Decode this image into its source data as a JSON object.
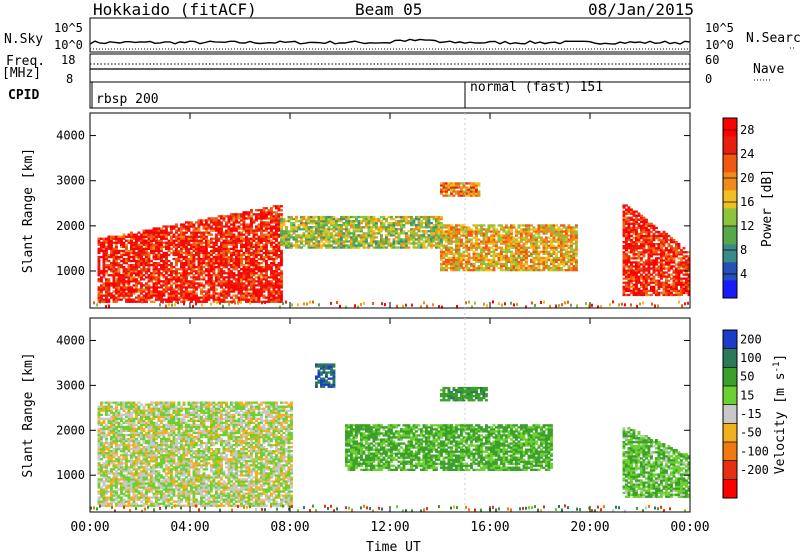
{
  "header": {
    "station": "Hokkaido (fitACF)",
    "beam": "Beam 05",
    "date": "08/Jan/2015"
  },
  "top_labels": {
    "nsky": "N.Sky",
    "nsearch": "N.Search",
    "freq_1": "Freq.",
    "freq_2": "[MHz]",
    "nave": "Nave",
    "cpid": "CPID",
    "nsky_ticks": [
      "10^5",
      "10^0"
    ],
    "freq_ticks": [
      "18",
      "8"
    ],
    "nave_ticks": [
      "60",
      "0"
    ],
    "cpid_labels": [
      "rbsp 200",
      "normal (fast) 151"
    ]
  },
  "panels": {
    "ylabel": "Slant Range [km]",
    "xlabel": "Time UT",
    "y_ticks": [
      "1000",
      "2000",
      "3000",
      "4000"
    ],
    "x_ticks": [
      "00:00",
      "04:00",
      "08:00",
      "12:00",
      "16:00",
      "20:00",
      "00:00"
    ]
  },
  "power_scale": {
    "label": "Power [dB]",
    "ticks": [
      "4",
      "8",
      "12",
      "16",
      "20",
      "24",
      "28"
    ],
    "colors": [
      "#1a1aff",
      "#2450b8",
      "#3a8a8a",
      "#56a84a",
      "#8cc43c",
      "#f0c020",
      "#f08a1a",
      "#f05a10",
      "#e81e0e",
      "#ff0000"
    ]
  },
  "velocity_scale": {
    "label_main": "Velocity [m s",
    "label_sup": "-1",
    "label_end": "]",
    "ticks": [
      "200",
      "100",
      "50",
      "15",
      "-15",
      "-50",
      "-100",
      "-200"
    ],
    "colors": [
      "#1a3cc8",
      "#2a7a5a",
      "#3aa02a",
      "#6cd030",
      "#c8c8c8",
      "#f0b020",
      "#f07a10",
      "#e83010",
      "#ff0000"
    ]
  },
  "chart_data": [
    {
      "type": "heatmap",
      "title": "Power",
      "ylabel": "Slant Range [km]",
      "xlabel": "Time UT",
      "xlim": [
        "00:00",
        "24:00"
      ],
      "ylim": [
        180,
        4500
      ],
      "colorbar": {
        "label": "Power [dB]",
        "range": [
          0,
          30
        ]
      },
      "regions": [
        {
          "t_start": 0.3,
          "t_end": 7.6,
          "range_min": 300,
          "range_max": 2450,
          "level": "high",
          "dominant_db": 26
        },
        {
          "t_start": 7.6,
          "t_end": 14.0,
          "range_min": 1500,
          "range_max": 2200,
          "level": "medium",
          "dominant_db": 14
        },
        {
          "t_start": 14.0,
          "t_end": 19.5,
          "range_min": 1000,
          "range_max": 2000,
          "level": "medium",
          "dominant_db": 18
        },
        {
          "t_start": 14.0,
          "t_end": 15.5,
          "range_min": 2650,
          "range_max": 2950,
          "level": "medium",
          "dominant_db": 20
        },
        {
          "t_start": 21.3,
          "t_end": 24.0,
          "range_min": 450,
          "range_max": 2500,
          "level": "high",
          "dominant_db": 26
        }
      ]
    },
    {
      "type": "heatmap",
      "title": "Velocity",
      "ylabel": "Slant Range [km]",
      "xlabel": "Time UT",
      "xlim": [
        "00:00",
        "24:00"
      ],
      "ylim": [
        180,
        4500
      ],
      "colorbar": {
        "label": "Velocity [m s-1]",
        "range": [
          -200,
          200
        ]
      },
      "regions": [
        {
          "t_start": 0.3,
          "t_end": 8.0,
          "range_min": 300,
          "range_max": 2600,
          "dominant_ms": 0
        },
        {
          "t_start": 9.0,
          "t_end": 9.7,
          "range_min": 2950,
          "range_max": 3450,
          "dominant_ms": 150
        },
        {
          "t_start": 10.2,
          "t_end": 18.5,
          "range_min": 1100,
          "range_max": 2100,
          "dominant_ms": 40
        },
        {
          "t_start": 14.0,
          "t_end": 15.8,
          "range_min": 2650,
          "range_max": 2950,
          "dominant_ms": 60
        },
        {
          "t_start": 21.3,
          "t_end": 24.0,
          "range_min": 500,
          "range_max": 2100,
          "dominant_ms": 30
        }
      ]
    }
  ]
}
